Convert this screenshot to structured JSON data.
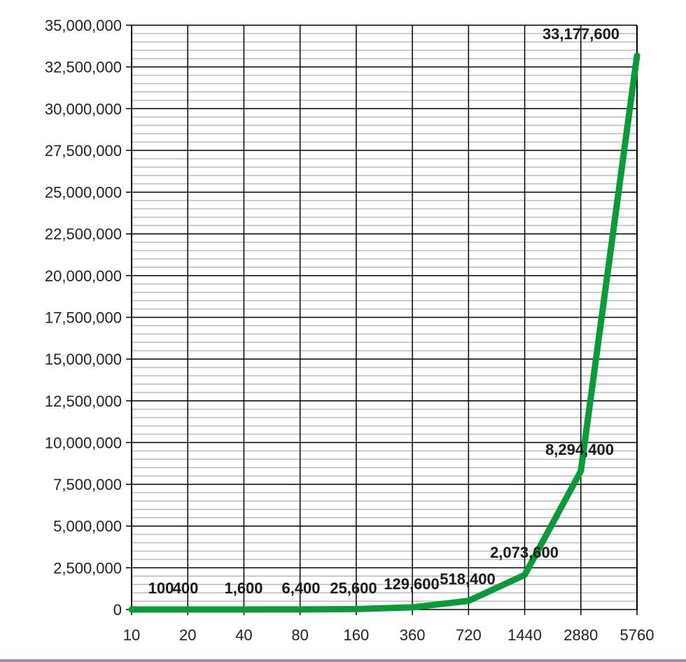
{
  "chart_data": {
    "type": "line",
    "title": "",
    "xlabel": "",
    "ylabel": "",
    "categories": [
      "10",
      "20",
      "40",
      "80",
      "160",
      "360",
      "720",
      "1440",
      "2880",
      "5760"
    ],
    "series": [
      {
        "values": [
          100,
          400,
          1600,
          6400,
          25600,
          129600,
          518400,
          2073600,
          8294400,
          33177600
        ],
        "labels": [
          "100",
          "400",
          "1,600",
          "6,400",
          "25,600",
          "129,600",
          "518,400",
          "2,073,600",
          "8,294,400",
          "33,177,600"
        ]
      }
    ],
    "ylim": [
      0,
      35000000
    ],
    "y_major_step": 2500000,
    "y_minor_step": 500000,
    "ytick_labels": [
      "0",
      "2,500,000",
      "5,000,000",
      "7,500,000",
      "10,000,000",
      "12,500,000",
      "15,000,000",
      "17,500,000",
      "20,000,000",
      "22,500,000",
      "25,000,000",
      "27,500,000",
      "30,000,000",
      "32,500,000",
      "35,000,000"
    ],
    "grid": true,
    "legend": "none",
    "line_color": "#0a9a3a",
    "grid_color": "#000000",
    "minor_grid_color": "#bbbbbb"
  }
}
